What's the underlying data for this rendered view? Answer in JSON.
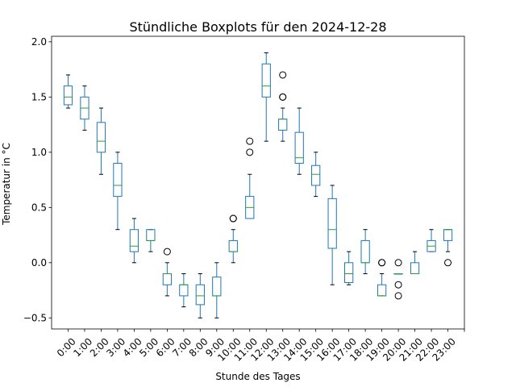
{
  "chart_data": {
    "type": "boxplot",
    "title": "Stündliche Boxplots für den 2024-12-28",
    "xlabel": "Stunde des Tages",
    "ylabel": "Temperatur in °C",
    "ylim": [
      -0.6,
      2.05
    ],
    "yticks": [
      -0.5,
      0.0,
      0.5,
      1.0,
      1.5,
      2.0
    ],
    "ytick_labels": [
      "−0.5",
      "0.0",
      "0.5",
      "1.0",
      "1.5",
      "2.0"
    ],
    "grid": false,
    "box_color": "#1f77b4",
    "median_color": "#2ca02c",
    "categories": [
      "0:00",
      "1:00",
      "2:00",
      "3:00",
      "4:00",
      "5:00",
      "6:00",
      "7:00",
      "8:00",
      "9:00",
      "10:00",
      "11:00",
      "12:00",
      "13:00",
      "14:00",
      "15:00",
      "16:00",
      "17:00",
      "18:00",
      "19:00",
      "20:00",
      "21:00",
      "22:00",
      "23:00"
    ],
    "boxes": [
      {
        "whislo": 1.4,
        "q1": 1.43,
        "med": 1.5,
        "q3": 1.6,
        "whishi": 1.7,
        "fliers": []
      },
      {
        "whislo": 1.2,
        "q1": 1.3,
        "med": 1.4,
        "q3": 1.5,
        "whishi": 1.6,
        "fliers": []
      },
      {
        "whislo": 0.8,
        "q1": 1.0,
        "med": 1.1,
        "q3": 1.27,
        "whishi": 1.4,
        "fliers": []
      },
      {
        "whislo": 0.3,
        "q1": 0.6,
        "med": 0.7,
        "q3": 0.9,
        "whishi": 1.0,
        "fliers": []
      },
      {
        "whislo": 0.0,
        "q1": 0.1,
        "med": 0.15,
        "q3": 0.3,
        "whishi": 0.4,
        "fliers": []
      },
      {
        "whislo": 0.1,
        "q1": 0.2,
        "med": 0.2,
        "q3": 0.3,
        "whishi": 0.3,
        "fliers": []
      },
      {
        "whislo": -0.3,
        "q1": -0.2,
        "med": -0.1,
        "q3": -0.1,
        "whishi": 0.0,
        "fliers": [
          0.1
        ]
      },
      {
        "whislo": -0.4,
        "q1": -0.3,
        "med": -0.2,
        "q3": -0.2,
        "whishi": -0.1,
        "fliers": []
      },
      {
        "whislo": -0.5,
        "q1": -0.38,
        "med": -0.3,
        "q3": -0.2,
        "whishi": -0.1,
        "fliers": []
      },
      {
        "whislo": -0.5,
        "q1": -0.3,
        "med": -0.3,
        "q3": -0.13,
        "whishi": 0.0,
        "fliers": []
      },
      {
        "whislo": 0.0,
        "q1": 0.1,
        "med": 0.1,
        "q3": 0.2,
        "whishi": 0.3,
        "fliers": [
          0.4,
          0.4
        ]
      },
      {
        "whislo": 0.4,
        "q1": 0.4,
        "med": 0.5,
        "q3": 0.6,
        "whishi": 0.8,
        "fliers": [
          1.0,
          1.1
        ]
      },
      {
        "whislo": 1.1,
        "q1": 1.5,
        "med": 1.6,
        "q3": 1.8,
        "whishi": 1.9,
        "fliers": []
      },
      {
        "whislo": 1.1,
        "q1": 1.2,
        "med": 1.3,
        "q3": 1.3,
        "whishi": 1.4,
        "fliers": [
          1.5,
          1.5,
          1.7
        ]
      },
      {
        "whislo": 0.8,
        "q1": 0.9,
        "med": 0.95,
        "q3": 1.18,
        "whishi": 1.4,
        "fliers": []
      },
      {
        "whislo": 0.6,
        "q1": 0.7,
        "med": 0.8,
        "q3": 0.88,
        "whishi": 1.0,
        "fliers": []
      },
      {
        "whislo": -0.2,
        "q1": 0.13,
        "med": 0.3,
        "q3": 0.58,
        "whishi": 0.7,
        "fliers": []
      },
      {
        "whislo": -0.2,
        "q1": -0.18,
        "med": -0.1,
        "q3": 0.0,
        "whishi": 0.1,
        "fliers": []
      },
      {
        "whislo": -0.1,
        "q1": 0.0,
        "med": 0.0,
        "q3": 0.2,
        "whishi": 0.3,
        "fliers": []
      },
      {
        "whislo": -0.3,
        "q1": -0.3,
        "med": -0.3,
        "q3": -0.2,
        "whishi": -0.1,
        "fliers": [
          0.0,
          0.0
        ]
      },
      {
        "whislo": -0.1,
        "q1": -0.1,
        "med": -0.1,
        "q3": -0.1,
        "whishi": -0.1,
        "fliers": [
          0.0,
          -0.2,
          -0.3
        ]
      },
      {
        "whislo": -0.1,
        "q1": -0.1,
        "med": -0.1,
        "q3": 0.0,
        "whishi": 0.1,
        "fliers": []
      },
      {
        "whislo": 0.1,
        "q1": 0.1,
        "med": 0.15,
        "q3": 0.2,
        "whishi": 0.3,
        "fliers": []
      },
      {
        "whislo": 0.1,
        "q1": 0.2,
        "med": 0.3,
        "q3": 0.3,
        "whishi": 0.3,
        "fliers": [
          0.0
        ]
      }
    ]
  }
}
